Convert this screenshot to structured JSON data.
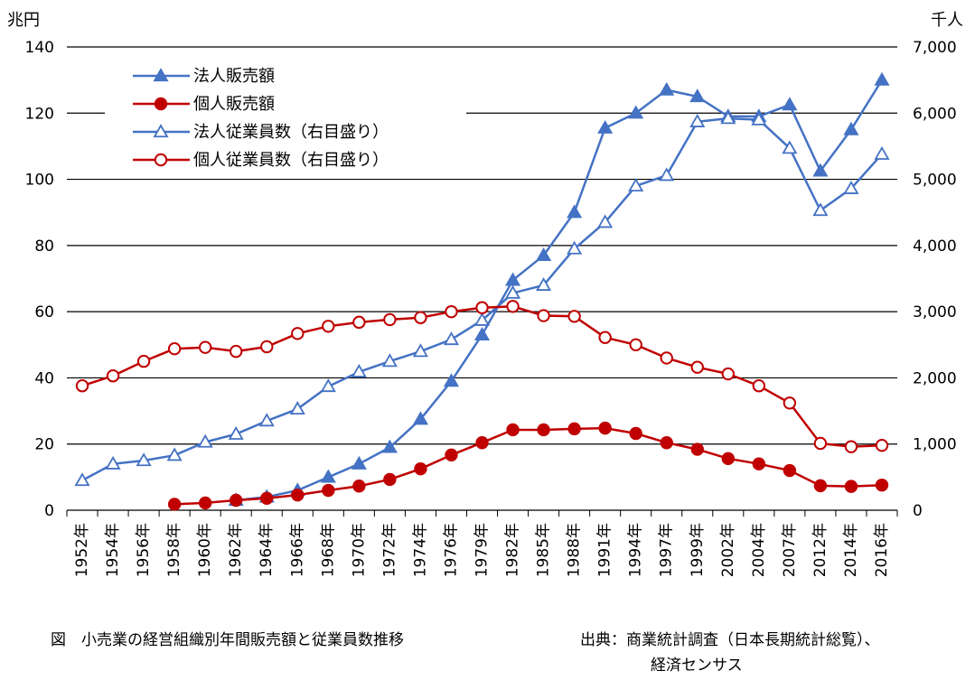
{
  "chart_data": {
    "type": "line",
    "y_left_unit": "兆円",
    "y_right_unit": "千人",
    "y_left_ticks": [
      "0",
      "20",
      "40",
      "60",
      "80",
      "100",
      "120",
      "140"
    ],
    "y_right_ticks": [
      "0",
      "1,000",
      "2,000",
      "3,000",
      "4,000",
      "5,000",
      "6,000",
      "7,000"
    ],
    "ylim_left": [
      0,
      140
    ],
    "ylim_right": [
      0,
      7000
    ],
    "grid": true,
    "legend_position": "top-left",
    "categories": [
      "1952年",
      "1954年",
      "1956年",
      "1958年",
      "1960年",
      "1962年",
      "1964年",
      "1966年",
      "1968年",
      "1970年",
      "1972年",
      "1974年",
      "1976年",
      "1979年",
      "1982年",
      "1985年",
      "1988年",
      "1991年",
      "1994年",
      "1997年",
      "1999年",
      "2002年",
      "2004年",
      "2007年",
      "2012年",
      "2014年",
      "2016年"
    ],
    "series": [
      {
        "name": "法人販売額",
        "axis": "left",
        "color": "#4472C4",
        "marker": "triangle-filled",
        "values": [
          null,
          null,
          null,
          null,
          null,
          3,
          4,
          6,
          10,
          14,
          19,
          27.5,
          39,
          53,
          69.5,
          77,
          90,
          115.5,
          120,
          127,
          125,
          119,
          119,
          122.5,
          102.5,
          115,
          130
        ]
      },
      {
        "name": "個人販売額",
        "axis": "left",
        "color": "#C00000",
        "marker": "circle-filled",
        "values": [
          null,
          null,
          null,
          1.8,
          2.2,
          3,
          3.6,
          4.6,
          6,
          7.3,
          9.3,
          12.5,
          16.7,
          20.4,
          24.3,
          24.3,
          24.6,
          24.8,
          23.2,
          20.4,
          18.4,
          15.6,
          14,
          12,
          7.4,
          7.2,
          7.6
        ]
      },
      {
        "name": "法人従業員数（右目盛り）",
        "axis": "right",
        "color": "#4472C4",
        "marker": "triangle-open",
        "values": [
          450,
          700,
          750,
          830,
          1030,
          1150,
          1350,
          1530,
          1870,
          2090,
          2250,
          2400,
          2580,
          2870,
          3280,
          3400,
          3950,
          4350,
          4900,
          5060,
          5870,
          5920,
          5900,
          5470,
          4530,
          4860,
          5380
        ]
      },
      {
        "name": "個人従業員数（右目盛り）",
        "axis": "right",
        "color": "#C00000",
        "marker": "circle-open",
        "values": [
          1880,
          2030,
          2250,
          2440,
          2460,
          2400,
          2470,
          2670,
          2780,
          2840,
          2880,
          2910,
          3000,
          3060,
          3080,
          2940,
          2930,
          2610,
          2500,
          2300,
          2160,
          2060,
          1880,
          1620,
          1010,
          960,
          980
        ]
      }
    ]
  },
  "caption_left": "図　小売業の経営組織別年間販売額と従業員数推移",
  "source_line1": "出典：商業統計調査（日本長期統計総覧）、",
  "source_line2": "経済センサス"
}
